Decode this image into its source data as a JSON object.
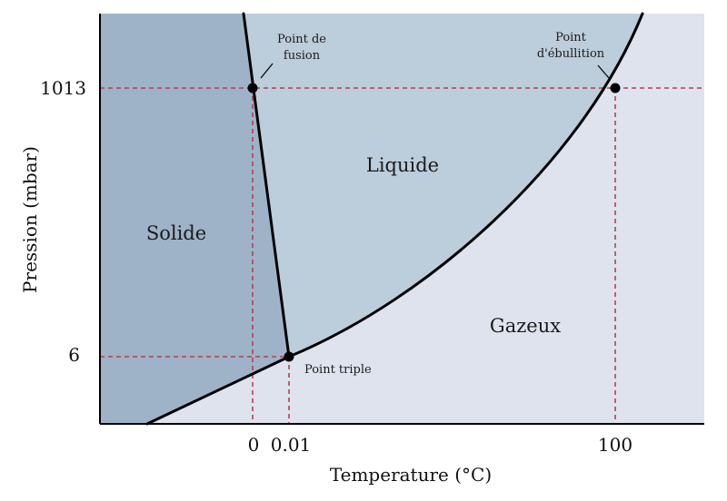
{
  "diagram": {
    "regions": {
      "solid": "Solide",
      "liquid": "Liquide",
      "gas": "Gazeux"
    },
    "points": {
      "melting": [
        "Point de",
        "fusion"
      ],
      "boiling": [
        "Point",
        "d'ébullition"
      ],
      "triple": "Point triple"
    },
    "axes": {
      "x_label": "Temperature (°C)",
      "y_label": "Pression (mbar)",
      "x_ticks": [
        "0",
        "0.01",
        "100"
      ],
      "y_ticks": [
        "1013",
        "6"
      ]
    },
    "colors": {
      "solid": "#9fb3c8",
      "liquid": "#bccddc",
      "gas": "#dfe3ee",
      "curve": "#000000",
      "guide": "#b0424e"
    }
  }
}
